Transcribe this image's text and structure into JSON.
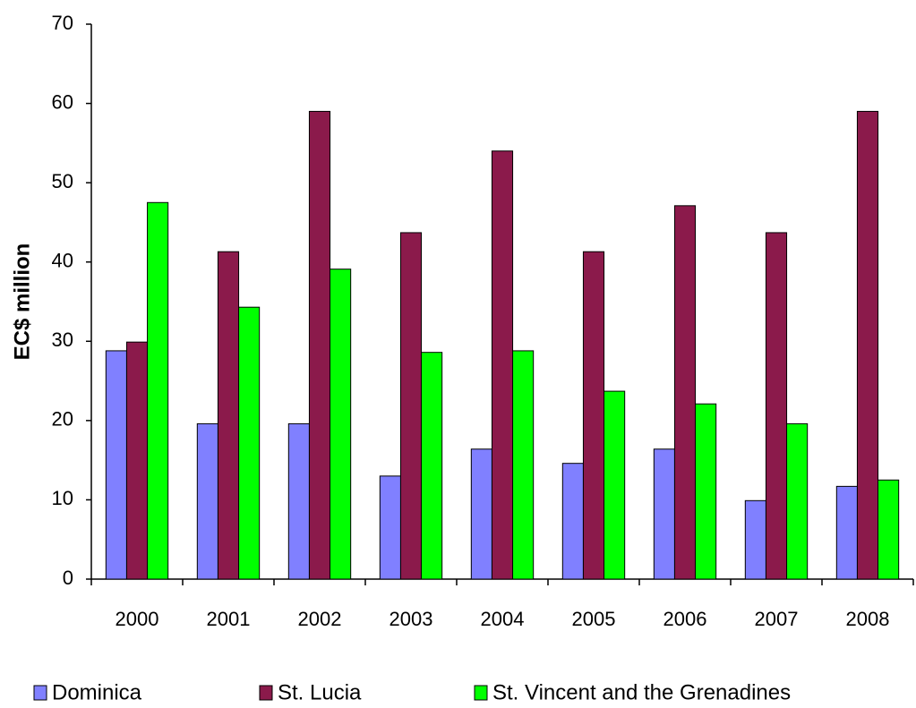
{
  "chart_data": {
    "type": "bar",
    "y_label": "EC$ million",
    "categories": [
      "2000",
      "2001",
      "2002",
      "2003",
      "2004",
      "2005",
      "2006",
      "2007",
      "2008"
    ],
    "series": [
      {
        "name": "Dominica",
        "color": "#8080ff",
        "values": [
          28.8,
          19.6,
          19.6,
          13.0,
          16.4,
          14.6,
          16.4,
          9.9,
          11.7
        ]
      },
      {
        "name": "St. Lucia",
        "color": "#8b1a4b",
        "values": [
          29.9,
          41.3,
          59.0,
          43.7,
          54.0,
          41.3,
          47.1,
          43.7,
          59.0
        ]
      },
      {
        "name": "St. Vincent and the Grenadines",
        "color": "#00ff00",
        "values": [
          47.5,
          34.3,
          39.1,
          28.6,
          28.8,
          23.7,
          22.1,
          19.6,
          12.5
        ]
      }
    ],
    "ylim": [
      0,
      70
    ],
    "yticks": [
      0,
      10,
      20,
      30,
      40,
      50,
      60,
      70
    ],
    "grid": false
  }
}
